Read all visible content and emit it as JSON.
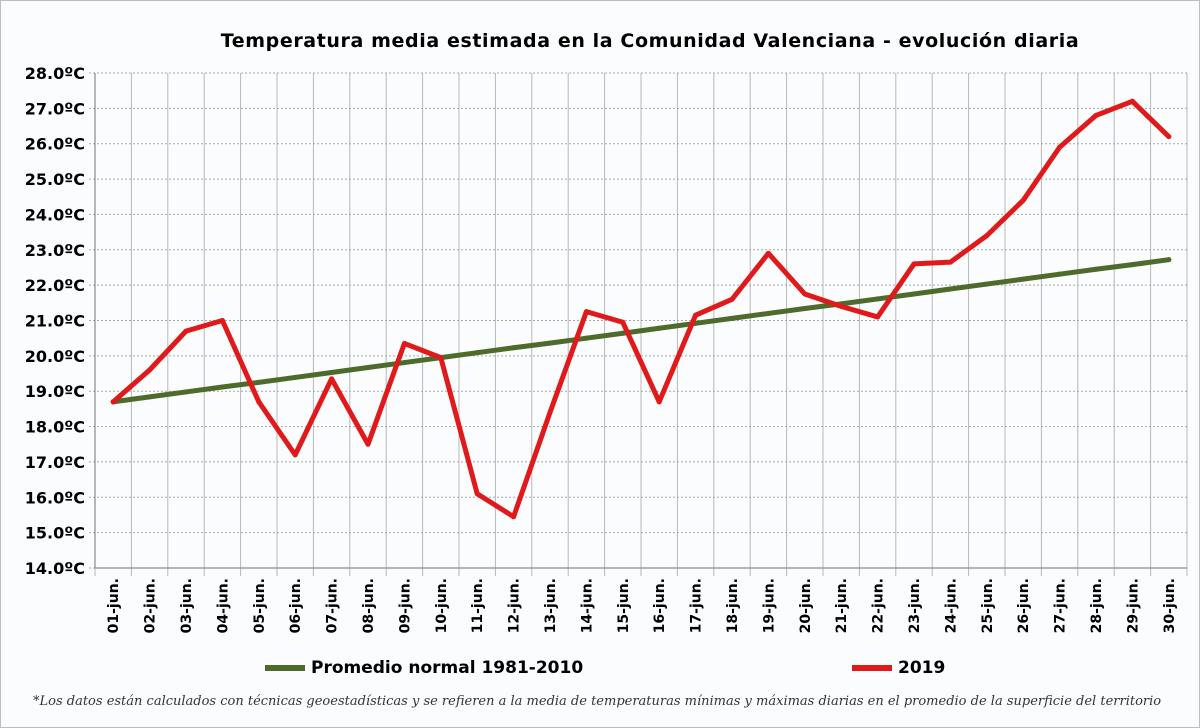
{
  "chart_data": {
    "type": "line",
    "title": "Temperatura media estimada en la Comunidad Valenciana - evolución diaria",
    "categories": [
      "01-jun.",
      "02-jun.",
      "03-jun.",
      "04-jun.",
      "05-jun.",
      "06-jun.",
      "07-jun.",
      "08-jun.",
      "09-jun.",
      "10-jun.",
      "11-jun.",
      "12-jun.",
      "13-jun.",
      "14-jun.",
      "15-jun.",
      "16-jun.",
      "17-jun.",
      "18-jun.",
      "19-jun.",
      "20-jun.",
      "21-jun.",
      "22-jun.",
      "23-jun.",
      "24-jun.",
      "25-jun.",
      "26-jun.",
      "27-jun.",
      "28-jun.",
      "29-jun.",
      "30-jun."
    ],
    "ylim": [
      14,
      28
    ],
    "yticks": [
      "14.0ºC",
      "15.0ºC",
      "16.0ºC",
      "17.0ºC",
      "18.0ºC",
      "19.0ºC",
      "20.0ºC",
      "21.0ºC",
      "22.0ºC",
      "23.0ºC",
      "24.0ºC",
      "25.0ºC",
      "26.0ºC",
      "27.0ºC",
      "28.0ºC"
    ],
    "grid": true,
    "legend_position": "bottom",
    "series": [
      {
        "name": "Promedio normal 1981-2010",
        "color": "#4d6b2a",
        "values": [
          18.7,
          18.84,
          18.98,
          19.12,
          19.25,
          19.39,
          19.53,
          19.67,
          19.81,
          19.95,
          20.09,
          20.23,
          20.36,
          20.5,
          20.64,
          20.78,
          20.92,
          21.06,
          21.2,
          21.34,
          21.47,
          21.61,
          21.75,
          21.89,
          22.03,
          22.17,
          22.31,
          22.45,
          22.58,
          22.72
        ]
      },
      {
        "name": "2019",
        "color": "#e01a1a",
        "values": [
          18.7,
          19.6,
          20.7,
          21.0,
          18.7,
          17.2,
          19.35,
          17.5,
          20.35,
          19.95,
          16.1,
          15.45,
          18.4,
          21.25,
          20.95,
          18.7,
          21.15,
          21.6,
          22.9,
          21.75,
          21.4,
          21.1,
          22.6,
          22.65,
          23.4,
          24.4,
          25.9,
          26.8,
          27.2,
          26.2
        ]
      }
    ]
  },
  "footnote": "*Los datos están calculados con técnicas geoestadísticas y se refieren a la media de temperaturas mínimas y máximas diarias en el promedio de la superficie del territorio"
}
